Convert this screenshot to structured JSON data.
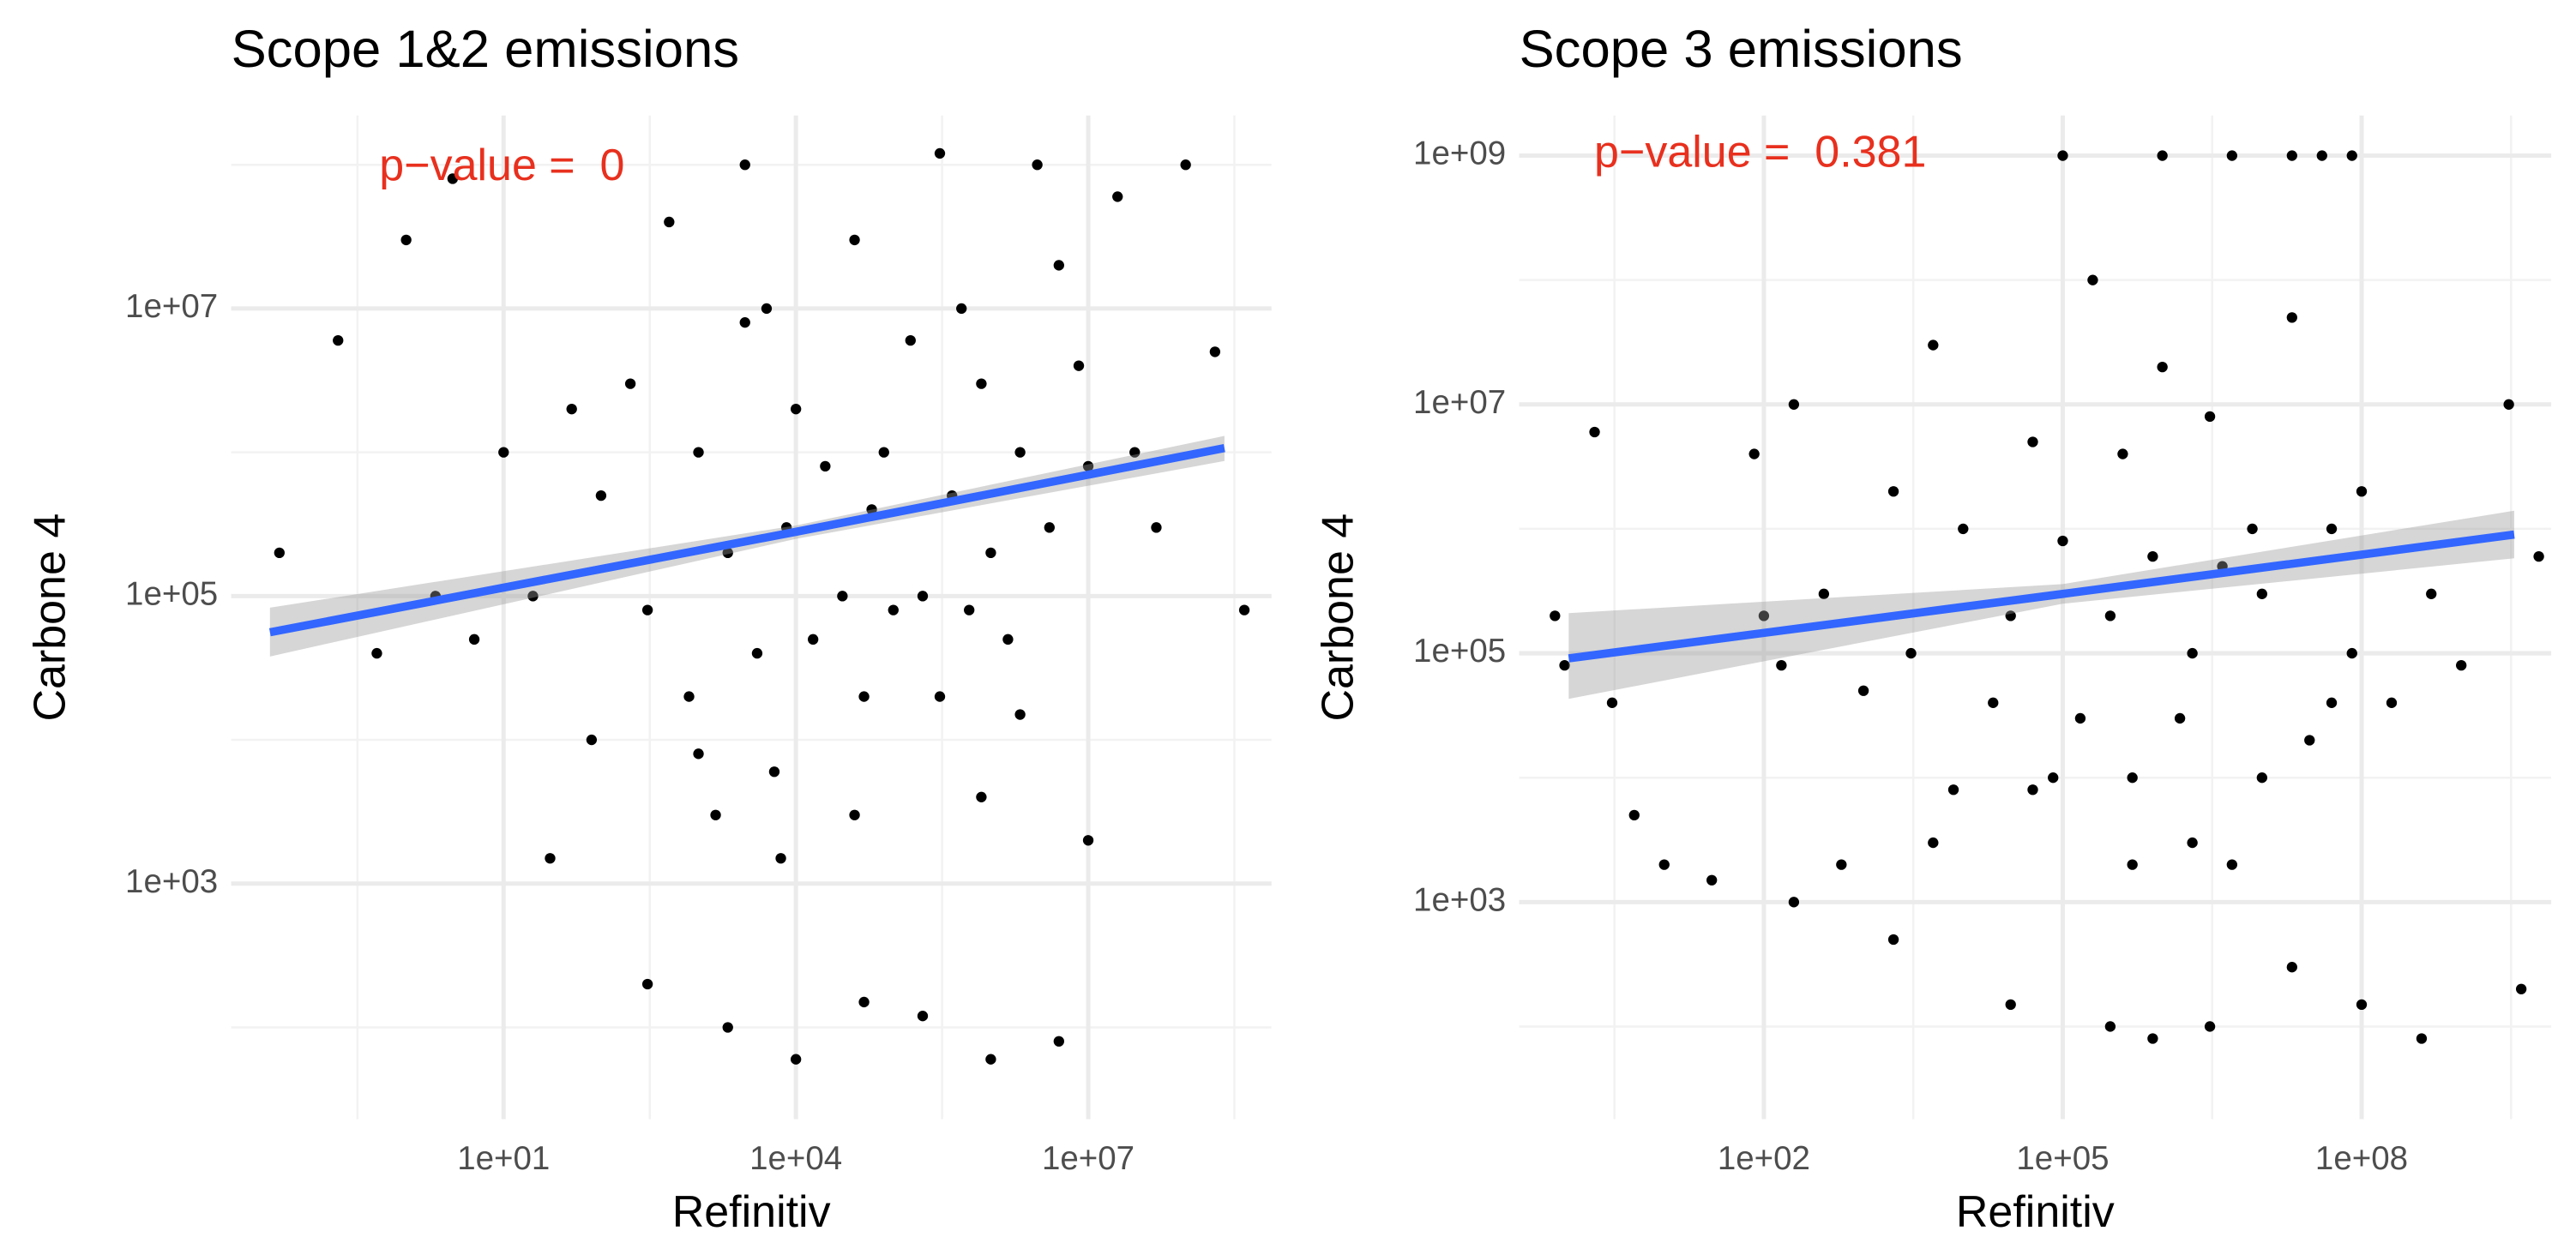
{
  "chart_data": [
    {
      "type": "scatter",
      "title": "Scope 1&2 emissions",
      "x_label": "Refinitiv",
      "y_label": "Carbone 4",
      "annotation": "p−value =  0",
      "annotation_color": "#e8301e",
      "xlog": true,
      "ylog": true,
      "grid": true,
      "xlim": [
        0.016,
        760000000
      ],
      "ylim": [
        23,
        220000000
      ],
      "xticks": [
        {
          "value": 10,
          "label": "1e+01"
        },
        {
          "value": 10000,
          "label": "1e+04"
        },
        {
          "value": 10000000,
          "label": "1e+07"
        }
      ],
      "yticks": [
        {
          "value": 1000,
          "label": "1e+03"
        },
        {
          "value": 100000,
          "label": "1e+05"
        },
        {
          "value": 10000000,
          "label": "1e+07"
        }
      ],
      "color": "#000000",
      "x": [
        0.05,
        0.2,
        0.5,
        1,
        2,
        3,
        5,
        10,
        20,
        50,
        80,
        100,
        200,
        300,
        500,
        800,
        1000,
        1500,
        2000,
        3000,
        4000,
        5000,
        6000,
        8000,
        10000.0,
        15000.0,
        20000.0,
        30000.0,
        40000.0,
        50000.0,
        60000.0,
        80000.0,
        100000.0,
        150000.0,
        200000.0,
        300000.0,
        400000.0,
        500000.0,
        600000.0,
        800000.0,
        1000000.0,
        1500000.0,
        2000000.0,
        3000000.0,
        4000000.0,
        5000000.0,
        8000000.0,
        10000000.0,
        20000000.0,
        30000000.0,
        50000000.0,
        100000000.0,
        200000000.0,
        400000000.0,
        300,
        2000,
        10000.0,
        50000.0,
        200000.0,
        1000000.0,
        5000000.0,
        3000,
        300000.0,
        800000.0,
        30,
        1000,
        7000,
        40000.0,
        2000000.0,
        10000000.0
      ],
      "y": [
        200000.0,
        6000000.0,
        40000.0,
        30000000.0,
        100000.0,
        80000000.0,
        50000.0,
        1000000.0,
        100000.0,
        2000000.0,
        10000.0,
        500000.0,
        3000000.0,
        80000.0,
        40000000.0,
        20000.0,
        1000000.0,
        3000,
        200000.0,
        8000000.0,
        40000.0,
        10000000.0,
        6000,
        300000.0,
        2000000.0,
        50000.0,
        800000.0,
        100000.0,
        30000000.0,
        20000.0,
        400000.0,
        1000000.0,
        80000.0,
        6000000.0,
        100000.0,
        20000.0,
        500000.0,
        10000000.0,
        80000.0,
        3000000.0,
        200000.0,
        50000.0,
        1000000.0,
        100000000.0,
        300000.0,
        20000000.0,
        4000000.0,
        800000.0,
        60000000.0,
        1000000.0,
        300000.0,
        100000000.0,
        5000000.0,
        80000.0,
        200,
        100,
        60,
        150,
        120,
        60,
        80,
        100000000.0,
        120000000.0,
        4000,
        1500,
        8000,
        1500,
        3000,
        15000.0,
        2000
      ],
      "fit": {
        "x": [
          0.04,
          10000,
          250000000
        ],
        "y": [
          56000,
          280000,
          1070000
        ],
        "ymin": [
          38000,
          250000,
          870000
        ],
        "ymax": [
          83000,
          310000,
          1300000
        ],
        "color": "#3366ff",
        "band_color": "#999999"
      }
    },
    {
      "type": "scatter",
      "title": "Scope 3 emissions",
      "x_label": "Refinitiv",
      "y_label": "Carbone 4",
      "annotation": "p−value =  0.381",
      "annotation_color": "#e8301e",
      "xlog": true,
      "ylog": true,
      "grid": true,
      "xlim": [
        0.35,
        8000000000
      ],
      "ylim": [
        18,
        2100000000
      ],
      "xticks": [
        {
          "value": 100,
          "label": "1e+02"
        },
        {
          "value": 100000,
          "label": "1e+05"
        },
        {
          "value": 100000000,
          "label": "1e+08"
        }
      ],
      "yticks": [
        {
          "value": 1000,
          "label": "1e+03"
        },
        {
          "value": 100000,
          "label": "1e+05"
        },
        {
          "value": 10000000,
          "label": "1e+07"
        },
        {
          "value": 1000000000,
          "label": "1e+09"
        }
      ],
      "color": "#000000",
      "x": [
        0.8,
        1,
        2,
        3,
        5,
        10,
        30,
        80,
        100,
        150,
        200,
        400,
        600,
        1000,
        2000,
        3000,
        5000,
        8000,
        10000.0,
        20000.0,
        30000.0,
        50000.0,
        80000.0,
        100000.0,
        150000.0,
        200000.0,
        300000.0,
        400000.0,
        500000.0,
        800000.0,
        1000000.0,
        1500000.0,
        2000000.0,
        3000000.0,
        4000000.0,
        5000000.0,
        8000000.0,
        10000000.0,
        20000000.0,
        30000000.0,
        50000000.0,
        80000000.0,
        100000000.0,
        200000000.0,
        500000000.0,
        1000000000.0,
        3000000000.0,
        6000000000.0,
        100000.0,
        1000000.0,
        5000000.0,
        20000000.0,
        40000000.0,
        80000000.0,
        30000.0,
        300000.0,
        3000000.0,
        20000000.0,
        100000000.0,
        5000,
        50000.0,
        500000.0,
        2000000.0,
        10000000.0,
        50000000.0,
        200,
        2000,
        800000.0,
        4000000000.0,
        400000000.0
      ],
      "y": [
        200000.0,
        80000.0,
        6000000.0,
        40000.0,
        5000,
        2000,
        1500,
        4000000.0,
        200000.0,
        80000.0,
        10000000.0,
        300000.0,
        2000,
        50000.0,
        2000000.0,
        100000.0,
        30000000.0,
        8000,
        1000000.0,
        40000.0,
        200000.0,
        5000000.0,
        10000.0,
        800000.0,
        30000.0,
        100000000.0,
        200000.0,
        4000000.0,
        10000.0,
        600000.0,
        20000000.0,
        30000.0,
        100000.0,
        8000000.0,
        500000.0,
        2000,
        1000000.0,
        300000.0,
        50000000.0,
        20000.0,
        1000000.0,
        100000.0,
        2000000.0,
        40000.0,
        300000.0,
        80000.0,
        10000000.0,
        600000.0,
        1000000000.0,
        1000000000.0,
        1000000000.0,
        1000000000.0,
        1000000000.0,
        1000000000.0,
        150,
        100,
        100,
        300,
        150,
        3000,
        8000,
        2000,
        3000,
        10000.0,
        40000.0,
        1000,
        500,
        80,
        200,
        80
      ],
      "fit": {
        "x": [
          1.1,
          100000,
          3400000000
        ],
        "y": [
          91000,
          300000,
          900000
        ],
        "ymin": [
          43000,
          250000,
          580000
        ],
        "ymax": [
          210000,
          360000,
          1400000
        ],
        "color": "#3366ff",
        "band_color": "#999999"
      }
    }
  ]
}
